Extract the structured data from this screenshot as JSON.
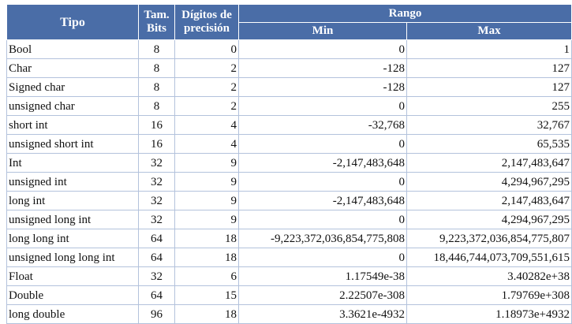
{
  "header": {
    "tipo": "Tipo",
    "tam_line1": "Tam.",
    "tam_line2": "Bits",
    "dig_line1": "Dígitos de",
    "dig_line2": "precisión",
    "rango": "Rango",
    "min": "Min",
    "max": "Max"
  },
  "colors": {
    "header_bg": "#4a6da7",
    "header_text": "#ffffff",
    "cell_border": "#b3c2dc"
  },
  "rows": [
    {
      "tipo": "Bool",
      "bits": "8",
      "digitos": "0",
      "min": "0",
      "max": "1"
    },
    {
      "tipo": "Char",
      "bits": "8",
      "digitos": "2",
      "min": "-128",
      "max": "127"
    },
    {
      "tipo": "Signed char",
      "bits": "8",
      "digitos": "2",
      "min": "-128",
      "max": "127"
    },
    {
      "tipo": "unsigned char",
      "bits": "8",
      "digitos": "2",
      "min": "0",
      "max": "255"
    },
    {
      "tipo": "short int",
      "bits": "16",
      "digitos": "4",
      "min": "-32,768",
      "max": "32,767"
    },
    {
      "tipo": "unsigned short int",
      "bits": "16",
      "digitos": "4",
      "min": "0",
      "max": "65,535"
    },
    {
      "tipo": "Int",
      "bits": "32",
      "digitos": "9",
      "min": "-2,147,483,648",
      "max": "2,147,483,647"
    },
    {
      "tipo": "unsigned int",
      "bits": "32",
      "digitos": "9",
      "min": "0",
      "max": "4,294,967,295"
    },
    {
      "tipo": "long int",
      "bits": "32",
      "digitos": "9",
      "min": "-2,147,483,648",
      "max": "2,147,483,647"
    },
    {
      "tipo": "unsigned long int",
      "bits": "32",
      "digitos": "9",
      "min": "0",
      "max": "4,294,967,295"
    },
    {
      "tipo": "long long int",
      "bits": "64",
      "digitos": "18",
      "min": "-9,223,372,036,854,775,808",
      "max": "9,223,372,036,854,775,807"
    },
    {
      "tipo": "unsigned long long int",
      "bits": "64",
      "digitos": "18",
      "min": "0",
      "max": "18,446,744,073,709,551,615"
    },
    {
      "tipo": "Float",
      "bits": "32",
      "digitos": "6",
      "min": "1.17549e-38",
      "max": "3.40282e+38"
    },
    {
      "tipo": "Double",
      "bits": "64",
      "digitos": "15",
      "min": "2.22507e-308",
      "max": "1.79769e+308"
    },
    {
      "tipo": "long double",
      "bits": "96",
      "digitos": "18",
      "min": "3.3621e-4932",
      "max": "1.18973e+4932"
    }
  ]
}
